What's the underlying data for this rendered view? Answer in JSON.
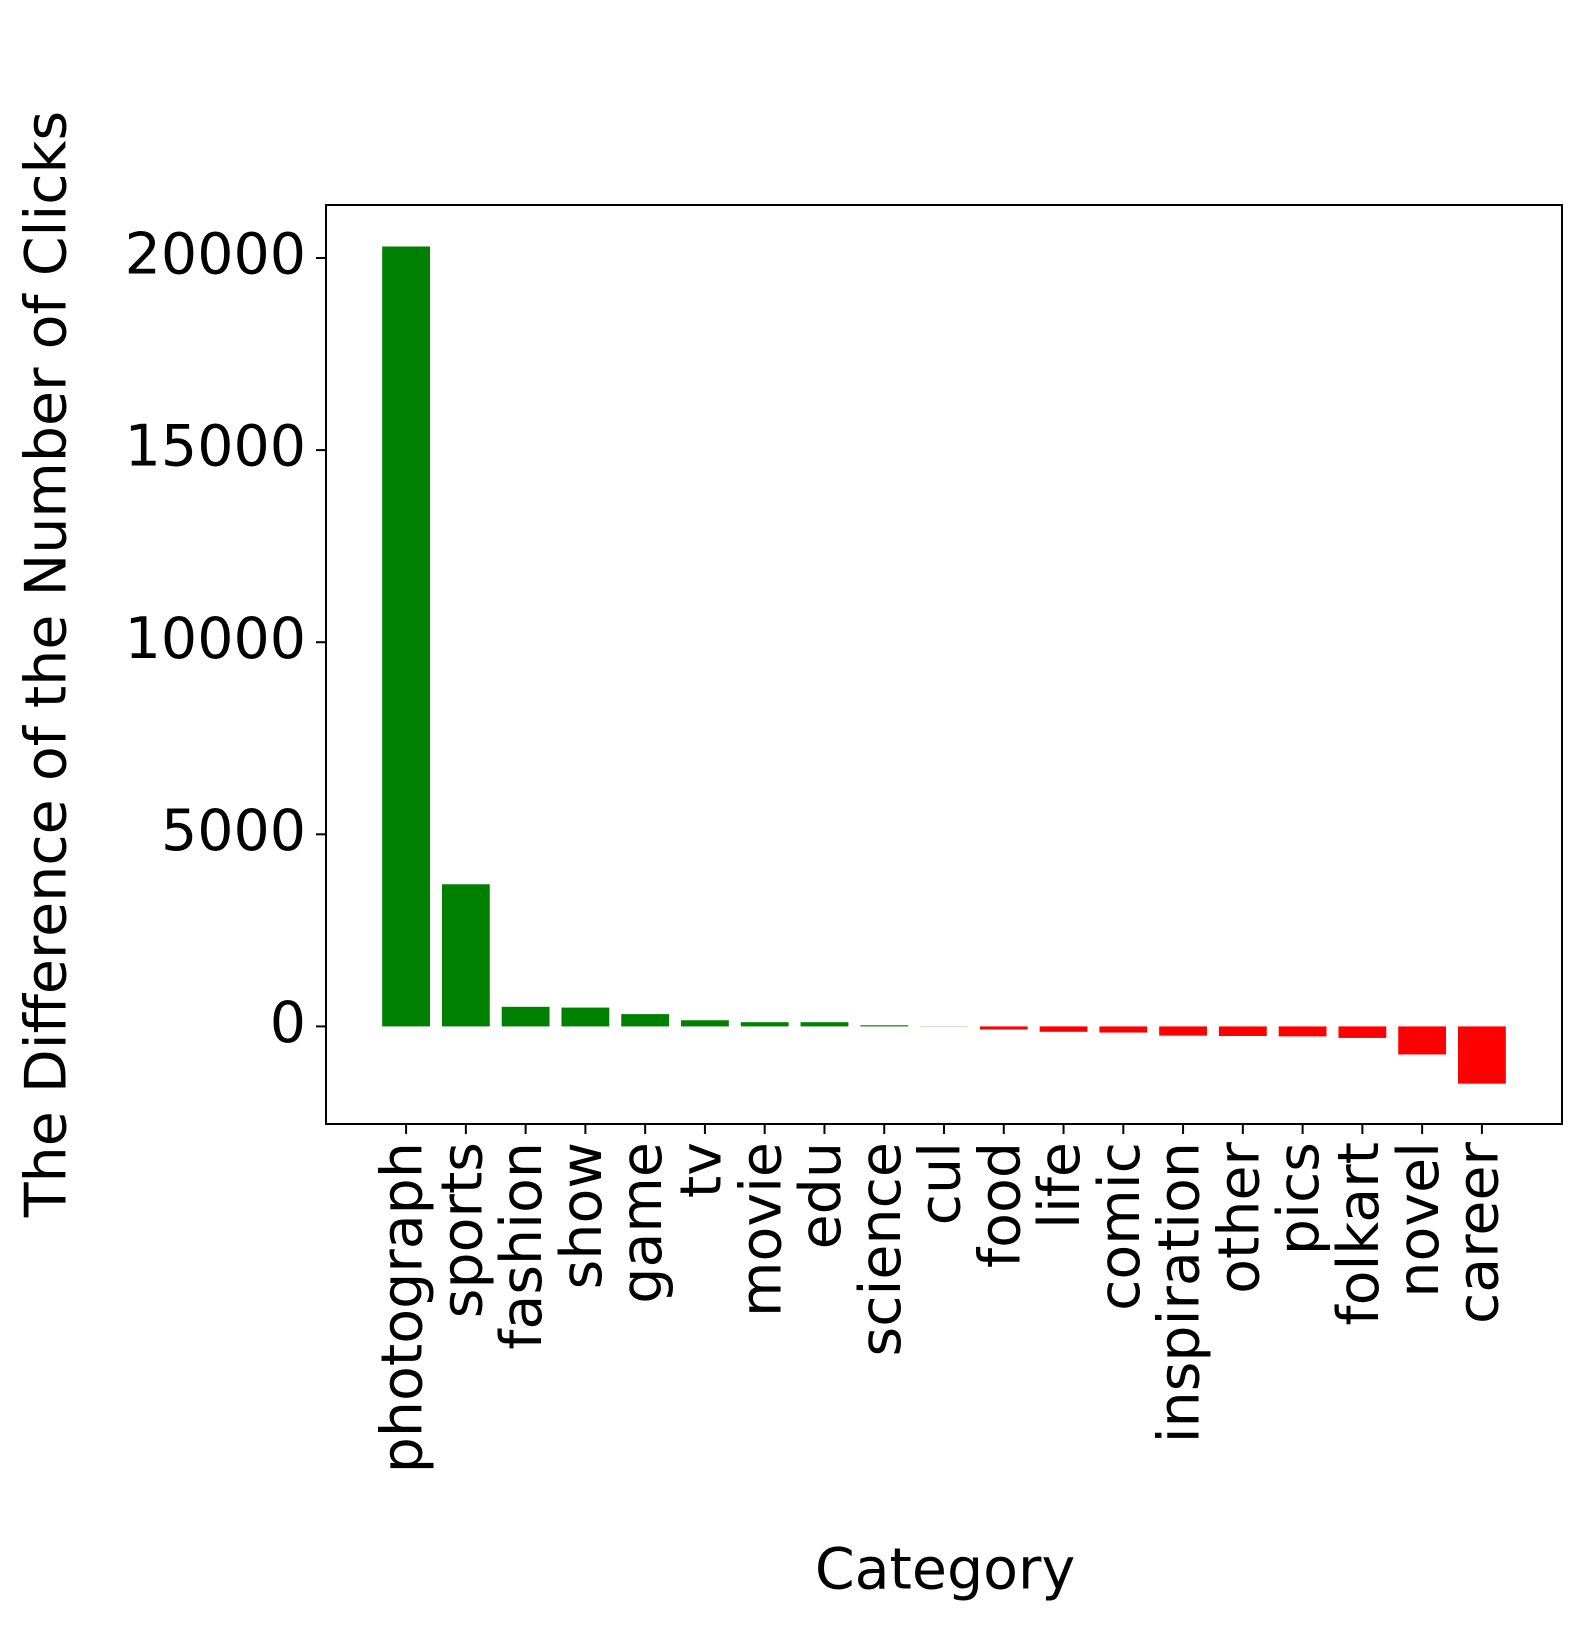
{
  "chart_data": {
    "type": "bar",
    "x_label": "Category",
    "y_label": "The Difference of the Number of Clicks",
    "categories": [
      "photograph",
      "sports",
      "fashion",
      "show",
      "game",
      "tv",
      "movie",
      "edu",
      "science",
      "cul",
      "food",
      "life",
      "comic",
      "inspiration",
      "other",
      "pics",
      "folkart",
      "novel",
      "career"
    ],
    "values": [
      20300,
      3700,
      510,
      490,
      320,
      160,
      110,
      110,
      30,
      5,
      -80,
      -140,
      -160,
      -240,
      -250,
      -260,
      -300,
      -730,
      -1490
    ],
    "color_positive": "#008000",
    "color_negative": "#ff0000",
    "ylim": [
      -2540,
      21380
    ],
    "yticks": [
      0,
      5000,
      10000,
      15000,
      20000
    ],
    "grid": false
  }
}
